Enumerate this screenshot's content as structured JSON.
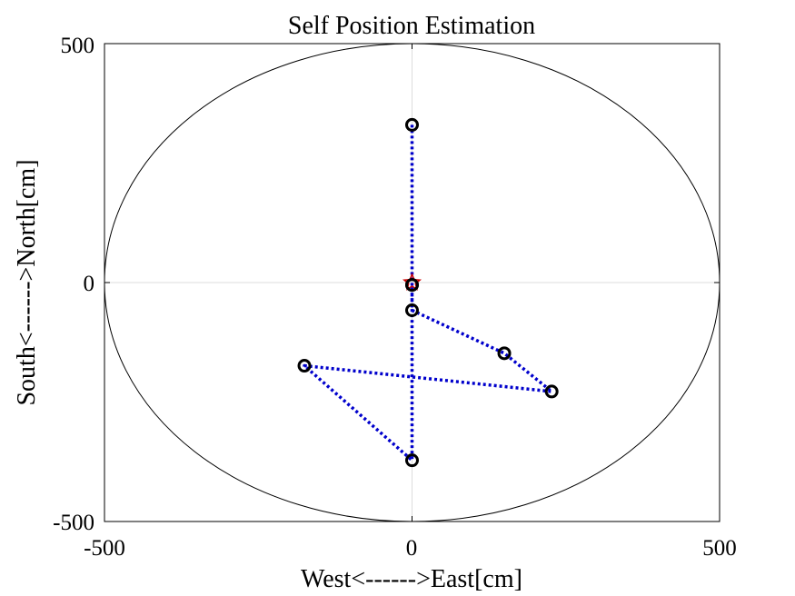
{
  "chart_data": {
    "type": "scatter",
    "title": "Self Position Estimation",
    "xlabel": "West<------>East[cm]",
    "ylabel": "South<------>North[cm]",
    "xlim": [
      -500,
      500
    ],
    "ylim": [
      -500,
      500
    ],
    "xticks": [
      "-500",
      "0",
      "500"
    ],
    "yticks": [
      "-500",
      "0",
      "500"
    ],
    "grid": "center crosshair only",
    "boundary_circle": {
      "center": [
        0,
        0
      ],
      "radius": 500,
      "color": "#000000"
    },
    "series": [
      {
        "style": "dotted line with circle markers",
        "color": "#0000cc",
        "marker_color": "#000000",
        "points": [
          {
            "x": 0,
            "y": 330
          },
          {
            "x": 0,
            "y": -5
          },
          {
            "x": 0,
            "y": -58
          },
          {
            "x": 150,
            "y": -148
          },
          {
            "x": 227,
            "y": -228
          },
          {
            "x": -175,
            "y": -174
          },
          {
            "x": 0,
            "y": -372
          },
          {
            "x": 0,
            "y": -5
          }
        ]
      }
    ],
    "origin_marker": {
      "x": 0,
      "y": 0,
      "shape": "star",
      "color": "#cc0000"
    }
  }
}
